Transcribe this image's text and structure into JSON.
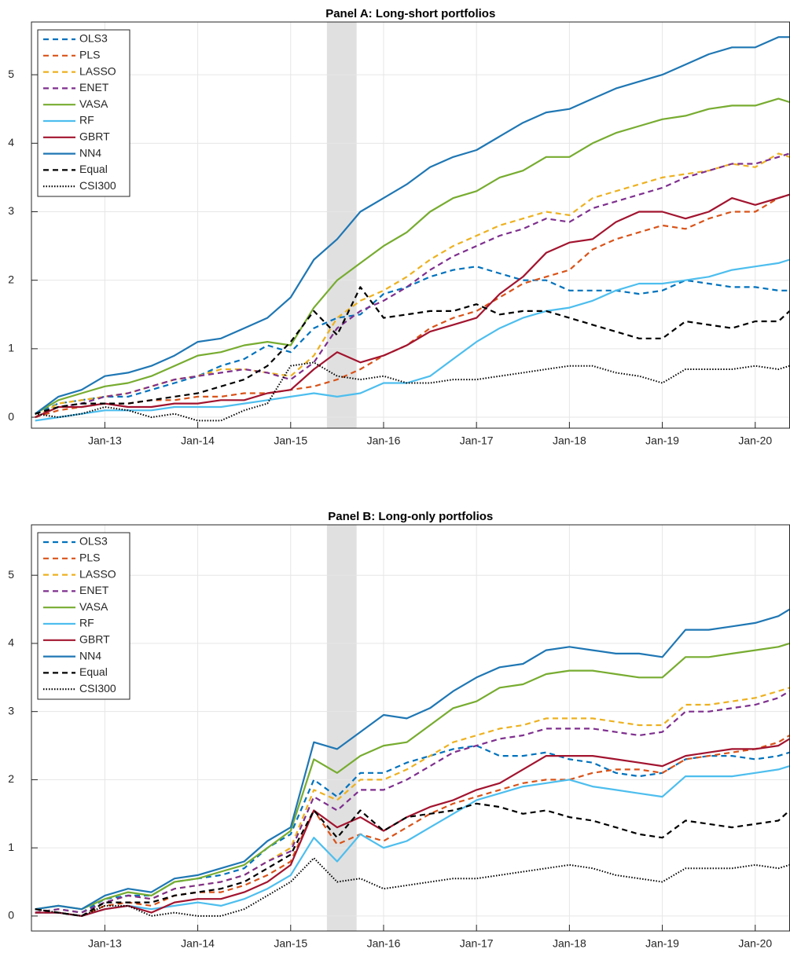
{
  "chart_data": [
    {
      "type": "line",
      "title": "Panel A: Long-short portfolios",
      "grid": true,
      "legend": "upper left",
      "xlim": [
        2012.21,
        2020.37
      ],
      "ylim": [
        -0.16,
        5.77
      ],
      "yticks": [
        0,
        1,
        2,
        3,
        4,
        5
      ],
      "xticks": [
        {
          "value": 2013,
          "label": "Jan-13"
        },
        {
          "value": 2014,
          "label": "Jan-14"
        },
        {
          "value": 2015,
          "label": "Jan-15"
        },
        {
          "value": 2016,
          "label": "Jan-16"
        },
        {
          "value": 2017,
          "label": "Jan-17"
        },
        {
          "value": 2018,
          "label": "Jan-18"
        },
        {
          "value": 2019,
          "label": "Jan-19"
        },
        {
          "value": 2020,
          "label": "Jan-20"
        }
      ],
      "shade": [
        2015.39,
        2015.71
      ],
      "x": [
        2012.25,
        2012.5,
        2012.75,
        2013.0,
        2013.25,
        2013.5,
        2013.75,
        2014.0,
        2014.25,
        2014.5,
        2014.75,
        2015.0,
        2015.25,
        2015.5,
        2015.75,
        2016.0,
        2016.25,
        2016.5,
        2016.75,
        2017.0,
        2017.25,
        2017.5,
        2017.75,
        2018.0,
        2018.25,
        2018.5,
        2018.75,
        2019.0,
        2019.25,
        2019.5,
        2019.75,
        2020.0,
        2020.25,
        2020.37
      ],
      "series": [
        {
          "name": "OLS3",
          "color": "#0072bd",
          "style": "dashed",
          "values": [
            0.05,
            0.2,
            0.25,
            0.3,
            0.3,
            0.4,
            0.5,
            0.6,
            0.75,
            0.85,
            1.05,
            0.95,
            1.3,
            1.45,
            1.5,
            1.8,
            1.9,
            2.05,
            2.15,
            2.2,
            2.1,
            2.0,
            2.0,
            1.85,
            1.85,
            1.85,
            1.8,
            1.85,
            2.0,
            1.95,
            1.9,
            1.9,
            1.85,
            1.85
          ]
        },
        {
          "name": "PLS",
          "color": "#d95319",
          "style": "dashed",
          "values": [
            0.0,
            0.1,
            0.15,
            0.2,
            0.2,
            0.25,
            0.25,
            0.3,
            0.3,
            0.35,
            0.35,
            0.4,
            0.45,
            0.55,
            0.7,
            0.9,
            1.05,
            1.3,
            1.45,
            1.55,
            1.75,
            1.95,
            2.05,
            2.15,
            2.45,
            2.6,
            2.7,
            2.8,
            2.75,
            2.9,
            3.0,
            3.0,
            3.2,
            3.25
          ]
        },
        {
          "name": "LASSO",
          "color": "#edb120",
          "style": "dashed",
          "values": [
            0.0,
            0.2,
            0.25,
            0.3,
            0.35,
            0.45,
            0.55,
            0.6,
            0.7,
            0.7,
            0.65,
            0.6,
            0.9,
            1.45,
            1.7,
            1.85,
            2.05,
            2.3,
            2.5,
            2.65,
            2.8,
            2.9,
            3.0,
            2.95,
            3.2,
            3.3,
            3.4,
            3.5,
            3.55,
            3.6,
            3.7,
            3.65,
            3.85,
            3.8
          ]
        },
        {
          "name": "ENET",
          "color": "#7e2f8e",
          "style": "dashed",
          "values": [
            0.0,
            0.15,
            0.2,
            0.3,
            0.35,
            0.45,
            0.55,
            0.6,
            0.65,
            0.7,
            0.65,
            0.55,
            0.8,
            1.3,
            1.55,
            1.7,
            1.9,
            2.15,
            2.35,
            2.5,
            2.65,
            2.75,
            2.9,
            2.85,
            3.05,
            3.15,
            3.25,
            3.35,
            3.5,
            3.6,
            3.7,
            3.7,
            3.8,
            3.85
          ]
        },
        {
          "name": "VASA",
          "color": "#77ac30",
          "style": "solid",
          "values": [
            0.05,
            0.25,
            0.35,
            0.45,
            0.5,
            0.6,
            0.75,
            0.9,
            0.95,
            1.05,
            1.1,
            1.05,
            1.6,
            2.0,
            2.25,
            2.5,
            2.7,
            3.0,
            3.2,
            3.3,
            3.5,
            3.6,
            3.8,
            3.8,
            4.0,
            4.15,
            4.25,
            4.35,
            4.4,
            4.5,
            4.55,
            4.55,
            4.65,
            4.6
          ]
        },
        {
          "name": "RF",
          "color": "#4dbeee",
          "style": "solid",
          "values": [
            -0.05,
            0.0,
            0.05,
            0.1,
            0.1,
            0.1,
            0.15,
            0.15,
            0.15,
            0.2,
            0.25,
            0.3,
            0.35,
            0.3,
            0.35,
            0.5,
            0.5,
            0.6,
            0.85,
            1.1,
            1.3,
            1.45,
            1.55,
            1.6,
            1.7,
            1.85,
            1.95,
            1.95,
            2.0,
            2.05,
            2.15,
            2.2,
            2.25,
            2.3
          ]
        },
        {
          "name": "GBRT",
          "color": "#a2142f",
          "style": "solid",
          "values": [
            0.0,
            0.15,
            0.15,
            0.2,
            0.15,
            0.15,
            0.2,
            0.2,
            0.25,
            0.25,
            0.35,
            0.4,
            0.7,
            0.95,
            0.8,
            0.9,
            1.05,
            1.25,
            1.35,
            1.45,
            1.8,
            2.05,
            2.4,
            2.55,
            2.6,
            2.85,
            3.0,
            3.0,
            2.9,
            3.0,
            3.2,
            3.1,
            3.2,
            3.25
          ]
        },
        {
          "name": "NN4",
          "color": "#1f77b4",
          "style": "solid",
          "values": [
            0.05,
            0.3,
            0.4,
            0.6,
            0.65,
            0.75,
            0.9,
            1.1,
            1.15,
            1.3,
            1.45,
            1.75,
            2.3,
            2.6,
            3.0,
            3.2,
            3.4,
            3.65,
            3.8,
            3.9,
            4.1,
            4.3,
            4.45,
            4.5,
            4.65,
            4.8,
            4.9,
            5.0,
            5.15,
            5.3,
            5.4,
            5.4,
            5.55,
            5.55
          ]
        },
        {
          "name": "Equal",
          "color": "#000000",
          "style": "dashed",
          "values": [
            0.05,
            0.15,
            0.2,
            0.2,
            0.2,
            0.25,
            0.3,
            0.35,
            0.45,
            0.55,
            0.75,
            1.1,
            1.55,
            1.2,
            1.9,
            1.45,
            1.5,
            1.55,
            1.55,
            1.65,
            1.5,
            1.55,
            1.55,
            1.45,
            1.35,
            1.25,
            1.15,
            1.15,
            1.4,
            1.35,
            1.3,
            1.4,
            1.4,
            1.55
          ]
        },
        {
          "name": "CSI300",
          "color": "#000000",
          "style": "dotted",
          "values": [
            0.05,
            0.0,
            0.05,
            0.15,
            0.1,
            0.0,
            0.05,
            -0.05,
            -0.05,
            0.1,
            0.2,
            0.75,
            0.8,
            0.6,
            0.55,
            0.6,
            0.5,
            0.5,
            0.55,
            0.55,
            0.6,
            0.65,
            0.7,
            0.75,
            0.75,
            0.65,
            0.6,
            0.5,
            0.7,
            0.7,
            0.7,
            0.75,
            0.7,
            0.75
          ]
        }
      ]
    },
    {
      "type": "line",
      "title": "Panel B: Long-only portfolios",
      "grid": true,
      "legend": "upper left",
      "xlim": [
        2012.21,
        2020.37
      ],
      "ylim": [
        -0.22,
        5.74
      ],
      "yticks": [
        0,
        1,
        2,
        3,
        4,
        5
      ],
      "xticks": [
        {
          "value": 2013,
          "label": "Jan-13"
        },
        {
          "value": 2014,
          "label": "Jan-14"
        },
        {
          "value": 2015,
          "label": "Jan-15"
        },
        {
          "value": 2016,
          "label": "Jan-16"
        },
        {
          "value": 2017,
          "label": "Jan-17"
        },
        {
          "value": 2018,
          "label": "Jan-18"
        },
        {
          "value": 2019,
          "label": "Jan-19"
        },
        {
          "value": 2020,
          "label": "Jan-20"
        }
      ],
      "shade": [
        2015.39,
        2015.71
      ],
      "x": [
        2012.25,
        2012.5,
        2012.75,
        2013.0,
        2013.25,
        2013.5,
        2013.75,
        2014.0,
        2014.25,
        2014.5,
        2014.75,
        2015.0,
        2015.25,
        2015.5,
        2015.75,
        2016.0,
        2016.25,
        2016.5,
        2016.75,
        2017.0,
        2017.25,
        2017.5,
        2017.75,
        2018.0,
        2018.25,
        2018.5,
        2018.75,
        2019.0,
        2019.25,
        2019.5,
        2019.75,
        2020.0,
        2020.25,
        2020.37
      ],
      "series": [
        {
          "name": "OLS3",
          "color": "#0072bd",
          "style": "dashed",
          "values": [
            0.05,
            0.1,
            0.05,
            0.25,
            0.3,
            0.3,
            0.5,
            0.55,
            0.6,
            0.7,
            1.0,
            1.2,
            2.0,
            1.75,
            2.1,
            2.1,
            2.25,
            2.35,
            2.45,
            2.5,
            2.35,
            2.35,
            2.4,
            2.3,
            2.25,
            2.1,
            2.05,
            2.1,
            2.3,
            2.35,
            2.35,
            2.3,
            2.35,
            2.4
          ]
        },
        {
          "name": "PLS",
          "color": "#d95319",
          "style": "dashed",
          "values": [
            0.05,
            0.05,
            0.0,
            0.15,
            0.2,
            0.15,
            0.3,
            0.35,
            0.35,
            0.45,
            0.6,
            0.8,
            1.55,
            1.05,
            1.2,
            1.1,
            1.3,
            1.5,
            1.65,
            1.75,
            1.85,
            1.95,
            2.0,
            2.0,
            2.1,
            2.15,
            2.15,
            2.1,
            2.3,
            2.35,
            2.4,
            2.45,
            2.55,
            2.65
          ]
        },
        {
          "name": "LASSO",
          "color": "#edb120",
          "style": "dashed",
          "values": [
            0.05,
            0.1,
            0.05,
            0.2,
            0.3,
            0.25,
            0.4,
            0.45,
            0.5,
            0.6,
            0.8,
            1.0,
            1.85,
            1.7,
            2.0,
            2.0,
            2.15,
            2.35,
            2.55,
            2.65,
            2.75,
            2.8,
            2.9,
            2.9,
            2.9,
            2.85,
            2.8,
            2.8,
            3.1,
            3.1,
            3.15,
            3.2,
            3.3,
            3.35
          ]
        },
        {
          "name": "ENET",
          "color": "#7e2f8e",
          "style": "dashed",
          "values": [
            0.05,
            0.1,
            0.05,
            0.2,
            0.3,
            0.25,
            0.4,
            0.45,
            0.5,
            0.6,
            0.8,
            0.95,
            1.75,
            1.55,
            1.85,
            1.85,
            2.0,
            2.2,
            2.4,
            2.5,
            2.6,
            2.65,
            2.75,
            2.75,
            2.75,
            2.7,
            2.65,
            2.7,
            3.0,
            3.0,
            3.05,
            3.1,
            3.2,
            3.3
          ]
        },
        {
          "name": "VASA",
          "color": "#77ac30",
          "style": "solid",
          "values": [
            0.1,
            0.15,
            0.1,
            0.25,
            0.35,
            0.3,
            0.5,
            0.55,
            0.65,
            0.75,
            1.0,
            1.25,
            2.3,
            2.1,
            2.35,
            2.5,
            2.55,
            2.8,
            3.05,
            3.15,
            3.35,
            3.4,
            3.55,
            3.6,
            3.6,
            3.55,
            3.5,
            3.5,
            3.8,
            3.8,
            3.85,
            3.9,
            3.95,
            4.0
          ]
        },
        {
          "name": "RF",
          "color": "#4dbeee",
          "style": "solid",
          "values": [
            0.05,
            0.05,
            0.0,
            0.1,
            0.15,
            0.1,
            0.15,
            0.2,
            0.15,
            0.25,
            0.4,
            0.6,
            1.15,
            0.8,
            1.2,
            1.0,
            1.1,
            1.3,
            1.5,
            1.7,
            1.8,
            1.9,
            1.95,
            2.0,
            1.9,
            1.85,
            1.8,
            1.75,
            2.05,
            2.05,
            2.05,
            2.1,
            2.15,
            2.2
          ]
        },
        {
          "name": "GBRT",
          "color": "#a2142f",
          "style": "solid",
          "values": [
            0.05,
            0.05,
            0.0,
            0.1,
            0.15,
            0.05,
            0.2,
            0.25,
            0.25,
            0.35,
            0.5,
            0.75,
            1.55,
            1.3,
            1.45,
            1.25,
            1.45,
            1.6,
            1.7,
            1.85,
            1.95,
            2.15,
            2.35,
            2.35,
            2.35,
            2.3,
            2.25,
            2.2,
            2.35,
            2.4,
            2.45,
            2.45,
            2.5,
            2.6
          ]
        },
        {
          "name": "NN4",
          "color": "#1f77b4",
          "style": "solid",
          "values": [
            0.1,
            0.15,
            0.1,
            0.3,
            0.4,
            0.35,
            0.55,
            0.6,
            0.7,
            0.8,
            1.1,
            1.3,
            2.55,
            2.45,
            2.7,
            2.95,
            2.9,
            3.05,
            3.3,
            3.5,
            3.65,
            3.7,
            3.9,
            3.95,
            3.9,
            3.85,
            3.85,
            3.8,
            4.2,
            4.2,
            4.25,
            4.3,
            4.4,
            4.5
          ]
        },
        {
          "name": "Equal",
          "color": "#000000",
          "style": "dashed",
          "values": [
            0.1,
            0.05,
            0.0,
            0.2,
            0.2,
            0.2,
            0.3,
            0.35,
            0.4,
            0.5,
            0.7,
            0.9,
            1.55,
            1.15,
            1.55,
            1.25,
            1.45,
            1.5,
            1.55,
            1.65,
            1.6,
            1.5,
            1.55,
            1.45,
            1.4,
            1.3,
            1.2,
            1.15,
            1.4,
            1.35,
            1.3,
            1.35,
            1.4,
            1.55
          ]
        },
        {
          "name": "CSI300",
          "color": "#000000",
          "style": "dotted",
          "values": [
            0.1,
            0.05,
            0.0,
            0.15,
            0.15,
            0.0,
            0.05,
            0.0,
            0.0,
            0.1,
            0.3,
            0.5,
            0.85,
            0.5,
            0.55,
            0.4,
            0.45,
            0.5,
            0.55,
            0.55,
            0.6,
            0.65,
            0.7,
            0.75,
            0.7,
            0.6,
            0.55,
            0.5,
            0.7,
            0.7,
            0.7,
            0.75,
            0.7,
            0.75
          ]
        }
      ]
    }
  ]
}
